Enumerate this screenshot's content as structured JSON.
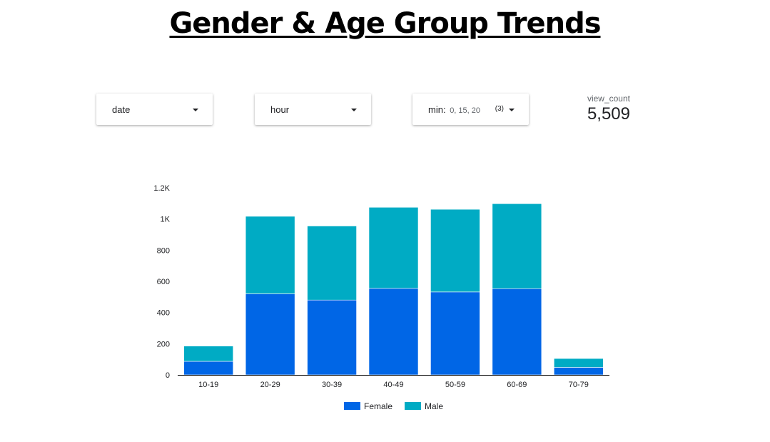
{
  "title": "Gender & Age Group Trends",
  "controls": [
    {
      "label": "date"
    },
    {
      "label": "hour"
    },
    {
      "label": "min:",
      "values": "0, 15, 20",
      "count": "(3)"
    }
  ],
  "scorecard": {
    "metric": "view_count",
    "value": "5,509"
  },
  "colors": {
    "female": "#0066e6",
    "male": "#00abc4"
  },
  "chart_data": {
    "type": "bar",
    "stacked": true,
    "categories": [
      "10-19",
      "20-29",
      "30-39",
      "40-49",
      "50-59",
      "60-69",
      "70-79"
    ],
    "series": [
      {
        "name": "Female",
        "values": [
          87,
          520,
          480,
          555,
          532,
          553,
          48
        ]
      },
      {
        "name": "Male",
        "values": [
          98,
          497,
          475,
          520,
          530,
          545,
          57
        ]
      }
    ],
    "yticks": [
      "0",
      "200",
      "400",
      "600",
      "800",
      "1K",
      "1.2K"
    ],
    "ylim": [
      0,
      1200
    ],
    "legend_position": "bottom"
  }
}
